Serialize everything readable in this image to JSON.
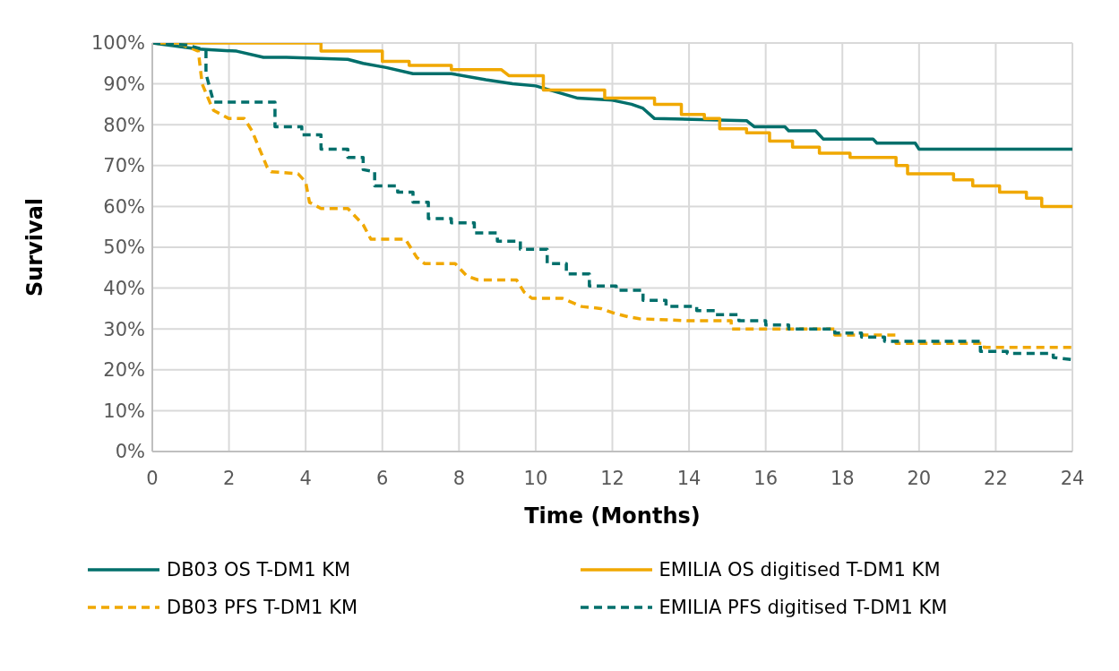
{
  "chart_data": {
    "type": "line",
    "xlabel": "Time (Months)",
    "ylabel": "Survival",
    "xlim": [
      0,
      24
    ],
    "xticks": [
      0,
      2,
      4,
      6,
      8,
      10,
      12,
      14,
      16,
      18,
      20,
      22,
      24
    ],
    "ylim": [
      0,
      100
    ],
    "yticks": [
      {
        "value": 0,
        "label": "0%"
      },
      {
        "value": 10,
        "label": "10%"
      },
      {
        "value": 20,
        "label": "20%"
      },
      {
        "value": 30,
        "label": "30%"
      },
      {
        "value": 40,
        "label": "40%"
      },
      {
        "value": 50,
        "label": "50%"
      },
      {
        "value": 60,
        "label": "60%"
      },
      {
        "value": 70,
        "label": "70%"
      },
      {
        "value": 80,
        "label": "80%"
      },
      {
        "value": 90,
        "label": "90%"
      },
      {
        "value": 100,
        "label": "100%"
      }
    ],
    "grid": true,
    "legend": "bottom",
    "marker": "none",
    "series": [
      {
        "name": "DB03 OS T-DM1 KM",
        "color": "#006f6b",
        "line_style": "solid",
        "x": [
          0,
          1.2,
          2.2,
          2.9,
          3.5,
          5.1,
          5.5,
          6.1,
          6.8,
          7.8,
          8.7,
          9.4,
          10.0,
          11.1,
          12.0,
          12.5,
          12.8,
          13.1,
          15.5,
          15.7,
          16.5,
          16.6,
          17.3,
          17.5,
          18.8,
          18.9,
          19.9,
          20.0,
          24
        ],
        "values": [
          100,
          98.5,
          98,
          96.5,
          96.5,
          96,
          95,
          94,
          92.5,
          92.5,
          91,
          90,
          89.5,
          86.5,
          86,
          85,
          84,
          81.5,
          81,
          79.5,
          79.5,
          78.5,
          78.5,
          76.5,
          76.5,
          75.5,
          75.5,
          74,
          74
        ]
      },
      {
        "name": "EMILIA OS digitised T-DM1 KM",
        "color": "#f0a800",
        "line_style": "solid",
        "x": [
          0,
          4.4,
          4.4,
          6.0,
          6.0,
          6.7,
          6.7,
          7.8,
          7.8,
          9.1,
          9.3,
          10.2,
          10.2,
          11.8,
          11.8,
          13.1,
          13.1,
          13.8,
          13.8,
          14.4,
          14.4,
          14.8,
          14.8,
          15.5,
          15.5,
          16.1,
          16.1,
          16.7,
          16.7,
          17.4,
          17.4,
          18.2,
          18.2,
          19.4,
          19.4,
          19.7,
          19.7,
          20.9,
          20.9,
          21.4,
          21.4,
          22.1,
          22.1,
          22.8,
          22.8,
          23.2,
          23.2,
          24
        ],
        "values": [
          100,
          100,
          98,
          98,
          95.5,
          95.5,
          94.5,
          94.5,
          93.5,
          93.5,
          92,
          92,
          88.5,
          88.5,
          86.5,
          86.5,
          85,
          85,
          82.5,
          82.5,
          81.5,
          81.5,
          79,
          79,
          78,
          78,
          76,
          76,
          74.5,
          74.5,
          73,
          73,
          72,
          72,
          70,
          70,
          68,
          68,
          66.5,
          66.5,
          65,
          65,
          63.5,
          63.5,
          62,
          62,
          60,
          60
        ]
      },
      {
        "name": "DB03 PFS T-DM1 KM",
        "color": "#f0a800",
        "line_style": "dashed",
        "x": [
          0,
          0.8,
          1.2,
          1.3,
          1.5,
          1.6,
          2.0,
          2.4,
          2.6,
          2.8,
          3.0,
          3.1,
          3.8,
          4.0,
          4.1,
          4.4,
          5.1,
          5.5,
          5.7,
          6.6,
          6.9,
          7.1,
          7.9,
          8.2,
          8.5,
          9.5,
          9.7,
          9.9,
          10.7,
          11.2,
          11.7,
          12.0,
          12.4,
          12.7,
          14.0,
          15.1,
          15.1,
          17.8,
          17.8,
          19.4,
          19.4,
          21.7,
          21.7,
          24
        ],
        "values": [
          100,
          99.5,
          98,
          90,
          85.5,
          83.5,
          81.5,
          81.5,
          78.5,
          74,
          69.5,
          68.5,
          68,
          66,
          61,
          59.5,
          59.5,
          55.5,
          52,
          52,
          47.5,
          46,
          46,
          43,
          42,
          42,
          39,
          37.5,
          37.5,
          35.5,
          35,
          34,
          33,
          32.5,
          32,
          32,
          30,
          30,
          28.5,
          28.5,
          26.5,
          26.5,
          25.5,
          25.5
        ]
      },
      {
        "name": "EMILIA PFS digitised T-DM1 KM",
        "color": "#006f6b",
        "line_style": "dashed",
        "x": [
          0,
          0.9,
          1.3,
          1.4,
          1.4,
          1.6,
          3.2,
          3.2,
          3.9,
          3.9,
          4.4,
          4.4,
          5.1,
          5.1,
          5.5,
          5.5,
          5.8,
          5.8,
          6.4,
          6.4,
          6.8,
          6.8,
          7.2,
          7.2,
          7.8,
          7.8,
          8.4,
          8.4,
          9.0,
          9.0,
          9.6,
          9.6,
          10.3,
          10.3,
          10.8,
          10.8,
          11.4,
          11.4,
          12.1,
          12.1,
          12.8,
          12.8,
          13.4,
          13.4,
          14.2,
          14.2,
          14.7,
          14.7,
          15.3,
          15.3,
          16.0,
          16.0,
          16.6,
          16.6,
          17.8,
          17.8,
          18.5,
          18.5,
          19.1,
          19.1,
          21.6,
          21.6,
          22.3,
          22.3,
          23.5,
          23.5,
          24
        ],
        "values": [
          100,
          99.5,
          98.5,
          98,
          92.5,
          85.5,
          85.5,
          79.5,
          79.5,
          77.5,
          77.5,
          74,
          74,
          72,
          72,
          69,
          68.5,
          65,
          65,
          63.5,
          63.5,
          61,
          61,
          57,
          57,
          56,
          56,
          53.5,
          53.5,
          51.5,
          51.5,
          49.5,
          49.5,
          46,
          46,
          43.5,
          43.5,
          40.5,
          40.5,
          39.5,
          39.5,
          37,
          37,
          35.5,
          35.5,
          34.5,
          34.5,
          33.5,
          33.5,
          32,
          32,
          31,
          31,
          30,
          30,
          29,
          29,
          28,
          28,
          27,
          27,
          24.5,
          24.5,
          24,
          24,
          23,
          22.5
        ]
      }
    ]
  }
}
